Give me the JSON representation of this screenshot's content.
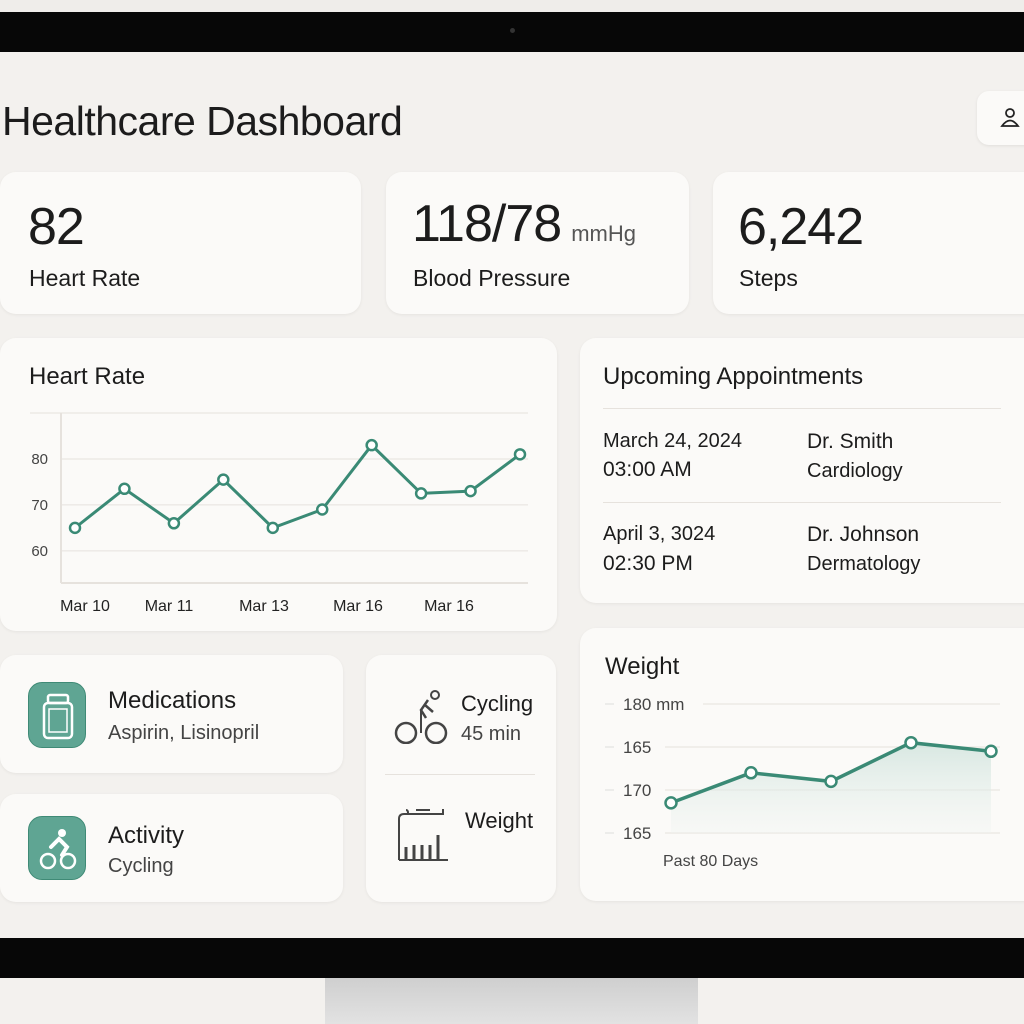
{
  "header": {
    "title": "Healthcare Dashboard",
    "user_icon": "user-icon"
  },
  "stats": [
    {
      "value": "82",
      "label": "Heart Rate"
    },
    {
      "value": "118/78",
      "unit": "mmHg",
      "label": "Blood Pressure"
    },
    {
      "value": "6,242",
      "label": "Steps"
    }
  ],
  "appointments": {
    "title": "Upcoming Appointments",
    "items": [
      {
        "date": "March 24, 2024",
        "time": "03:00 AM",
        "doctor": "Dr. Smith",
        "specialty": "Cardiology"
      },
      {
        "date": "April 3, 3024",
        "time": "02:30 PM",
        "doctor": "Dr. Johnson",
        "specialty": "Dermatology"
      }
    ]
  },
  "medications": {
    "title": "Medications",
    "detail": "Aspirin, Lisinopril",
    "icon": "pill-bottle-icon"
  },
  "activity": {
    "title": "Activity",
    "detail": "Cycling",
    "icon": "cycling-icon"
  },
  "summary": {
    "cycling_title": "Cycling",
    "cycling_detail": "45 min",
    "weight_title": "Weight"
  },
  "colors": {
    "accent": "#3a8a75",
    "accent_light": "#5fa593",
    "background": "#f3f1ee",
    "card": "#fbfaf8"
  },
  "chart_data": [
    {
      "type": "line",
      "title": "Heart Rate",
      "x_tick_labels": [
        "Mar 10",
        "Mar 11",
        "Mar 13",
        "Mar 16",
        "Mar 16"
      ],
      "y_ticks": [
        60,
        70,
        80
      ],
      "ylim": [
        53,
        90
      ],
      "grid": true,
      "series": [
        {
          "values": [
            65,
            73.5,
            66,
            75.5,
            65,
            69,
            83,
            72.5,
            73,
            81
          ]
        }
      ]
    },
    {
      "type": "area",
      "title": "Weight",
      "y_tick_labels": [
        "180 mm",
        "165",
        "170",
        "165"
      ],
      "xlabel": "Past 80 Days",
      "grid": true,
      "series": [
        {
          "values": [
            168.5,
            172,
            171,
            175.5,
            174.5
          ]
        }
      ]
    }
  ]
}
